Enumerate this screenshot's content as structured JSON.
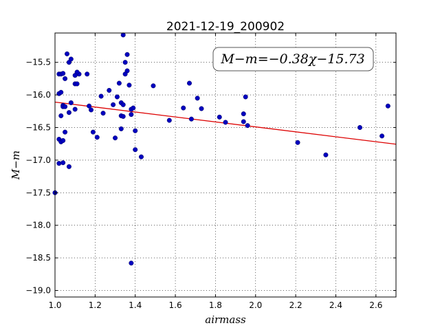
{
  "chart_data": {
    "type": "scatter",
    "title": "2021-12-19_200902",
    "xlabel": "airmass",
    "ylabel": "M−m",
    "xlim": [
      1.0,
      2.7
    ],
    "ylim": [
      -19.1,
      -15.05
    ],
    "y_inverted": true,
    "grid": true,
    "x_ticks": [
      1.0,
      1.2,
      1.4,
      1.6,
      1.8,
      2.0,
      2.2,
      2.4,
      2.6
    ],
    "x_tick_labels": [
      "1.0",
      "1.2",
      "1.4",
      "1.6",
      "1.8",
      "2.0",
      "2.2",
      "2.4",
      "2.6"
    ],
    "y_ticks": [
      -15.5,
      -16.0,
      -16.5,
      -17.0,
      -17.5,
      -18.0,
      -18.5,
      -19.0
    ],
    "y_tick_labels": [
      "−15.5",
      "−16.0",
      "−16.5",
      "−17.0",
      "−17.5",
      "−18.0",
      "−18.5",
      "−19.0"
    ],
    "annotation": "M−m=−0.38χ−15.73",
    "fit": {
      "slope": -0.38,
      "intercept": -15.73,
      "color": "#dd0000"
    },
    "marker_color": "#0000bf",
    "points": [
      [
        1.0,
        -17.5
      ],
      [
        1.02,
        -15.68
      ],
      [
        1.03,
        -15.68
      ],
      [
        1.04,
        -15.67
      ],
      [
        1.05,
        -15.75
      ],
      [
        1.06,
        -15.37
      ],
      [
        1.07,
        -15.5
      ],
      [
        1.08,
        -15.45
      ],
      [
        1.1,
        -15.83
      ],
      [
        1.11,
        -15.83
      ],
      [
        1.12,
        -15.68
      ],
      [
        1.11,
        -15.65
      ],
      [
        1.1,
        -15.7
      ],
      [
        1.16,
        -15.68
      ],
      [
        1.02,
        -15.98
      ],
      [
        1.03,
        -15.96
      ],
      [
        1.03,
        -16.32
      ],
      [
        1.04,
        -16.16
      ],
      [
        1.04,
        -16.18
      ],
      [
        1.05,
        -16.18
      ],
      [
        1.08,
        -16.12
      ],
      [
        1.07,
        -16.27
      ],
      [
        1.1,
        -16.22
      ],
      [
        1.17,
        -16.17
      ],
      [
        1.18,
        -16.23
      ],
      [
        1.05,
        -16.57
      ],
      [
        1.02,
        -16.68
      ],
      [
        1.03,
        -16.72
      ],
      [
        1.04,
        -16.7
      ],
      [
        1.02,
        -17.05
      ],
      [
        1.04,
        -17.04
      ],
      [
        1.07,
        -17.1
      ],
      [
        1.19,
        -16.57
      ],
      [
        1.21,
        -16.65
      ],
      [
        1.23,
        -16.02
      ],
      [
        1.24,
        -16.28
      ],
      [
        1.27,
        -15.93
      ],
      [
        1.29,
        -16.15
      ],
      [
        1.3,
        -16.66
      ],
      [
        1.31,
        -16.03
      ],
      [
        1.32,
        -15.82
      ],
      [
        1.33,
        -16.12
      ],
      [
        1.34,
        -16.15
      ],
      [
        1.33,
        -16.32
      ],
      [
        1.34,
        -16.33
      ],
      [
        1.33,
        -16.52
      ],
      [
        1.35,
        -15.5
      ],
      [
        1.36,
        -15.38
      ],
      [
        1.36,
        -15.63
      ],
      [
        1.35,
        -15.68
      ],
      [
        1.34,
        -15.08
      ],
      [
        1.37,
        -15.85
      ],
      [
        1.38,
        -16.22
      ],
      [
        1.39,
        -16.2
      ],
      [
        1.38,
        -16.3
      ],
      [
        1.4,
        -16.55
      ],
      [
        1.4,
        -16.84
      ],
      [
        1.43,
        -16.95
      ],
      [
        1.38,
        -18.58
      ],
      [
        1.49,
        -15.86
      ],
      [
        1.57,
        -16.39
      ],
      [
        1.64,
        -16.2
      ],
      [
        1.67,
        -15.82
      ],
      [
        1.68,
        -16.37
      ],
      [
        1.71,
        -16.05
      ],
      [
        1.73,
        -16.21
      ],
      [
        1.82,
        -16.34
      ],
      [
        1.85,
        -16.42
      ],
      [
        1.94,
        -16.29
      ],
      [
        1.94,
        -16.41
      ],
      [
        1.95,
        -16.03
      ],
      [
        1.96,
        -16.47
      ],
      [
        2.21,
        -16.73
      ],
      [
        2.35,
        -16.92
      ],
      [
        2.52,
        -16.5
      ],
      [
        2.63,
        -16.63
      ],
      [
        2.66,
        -16.17
      ]
    ]
  }
}
